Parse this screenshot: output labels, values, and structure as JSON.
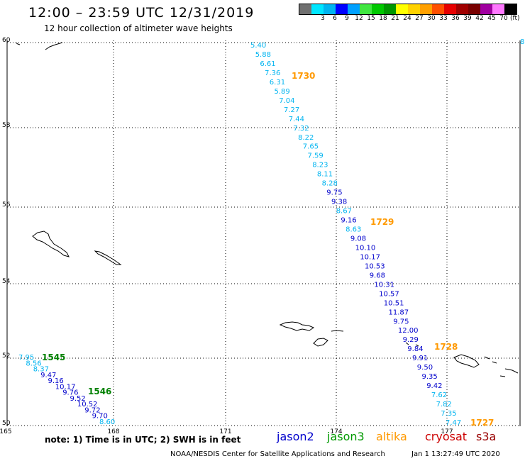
{
  "header": {
    "title": "12:00 – 23:59 UTC 12/31/2019",
    "subtitle": "12 hour collection of altimeter wave heights"
  },
  "legend": {
    "unit": "(ft)",
    "entries": [
      {
        "label": "",
        "color": "#707070"
      },
      {
        "label": "3",
        "color": "#00e6ff"
      },
      {
        "label": "6",
        "color": "#00b4f0"
      },
      {
        "label": "9",
        "color": "#0000ff"
      },
      {
        "label": "12",
        "color": "#00a0ff"
      },
      {
        "label": "15",
        "color": "#40e640"
      },
      {
        "label": "18",
        "color": "#00c800"
      },
      {
        "label": "21",
        "color": "#009600"
      },
      {
        "label": "24",
        "color": "#ffff00"
      },
      {
        "label": "27",
        "color": "#ffd200"
      },
      {
        "label": "30",
        "color": "#ffa000"
      },
      {
        "label": "33",
        "color": "#ff5000"
      },
      {
        "label": "36",
        "color": "#e60000"
      },
      {
        "label": "39",
        "color": "#a00000"
      },
      {
        "label": "42",
        "color": "#780000"
      },
      {
        "label": "45",
        "color": "#a000a0"
      },
      {
        "label": "70",
        "color": "#ff78ff"
      },
      {
        "label": "",
        "color": "#000000"
      }
    ]
  },
  "map": {
    "lon_ticks": [
      "165",
      "168",
      "171",
      "174",
      "177"
    ],
    "lat_ticks": [
      "60",
      "58",
      "56",
      "54",
      "52",
      "50"
    ],
    "right_edge_label": "8",
    "pass_times": [
      {
        "text": "1730",
        "color": "#ff9900"
      },
      {
        "text": "1729",
        "color": "#ff9900"
      },
      {
        "text": "1728",
        "color": "#ff9900"
      },
      {
        "text": "1727",
        "color": "#ff9900"
      },
      {
        "text": "1545",
        "color": "#008000"
      },
      {
        "text": "1546",
        "color": "#008000"
      }
    ],
    "track_altika": [
      "5.40",
      "5.88",
      "6.61",
      "7.36",
      "6.31",
      "5.89",
      "7.04",
      "7.27",
      "7.44",
      "7.32",
      "8.22",
      "7.65",
      "7.59",
      "8.23",
      "8.11",
      "8.28",
      "9.75",
      "9.38",
      "8.67",
      "9.16",
      "8.63",
      "9.08",
      "10.10",
      "10.17",
      "10.53",
      "9.68",
      "10.31",
      "10.57",
      "10.51",
      "11.87",
      "9.75",
      "12.00",
      "9.29",
      "9.84",
      "9.91",
      "9.50",
      "9.35",
      "9.42",
      "7.62",
      "7.82",
      "7.35",
      "7.47"
    ],
    "track_jason3": [
      "7.95",
      "8.56",
      "8.37",
      "9.47",
      "9.16",
      "10.17",
      "9.76",
      "9.52",
      "10.52",
      "9.72",
      "9.70",
      "8.60"
    ]
  },
  "note": "note:  1) Time is in UTC;  2) SWH is in feet",
  "satellites": [
    {
      "name": "jason2",
      "color": "#0000cc"
    },
    {
      "name": "jason3",
      "color": "#009900"
    },
    {
      "name": "altika",
      "color": "#ff9900"
    },
    {
      "name": "cryosat",
      "color": "#cc0000"
    },
    {
      "name": "s3a",
      "color": "#990000"
    }
  ],
  "footer": {
    "credit": "NOAA/NESDIS Center for Satellite Applications and Research",
    "timestamp": "Jan  1 13:27:49 UTC 2020"
  }
}
